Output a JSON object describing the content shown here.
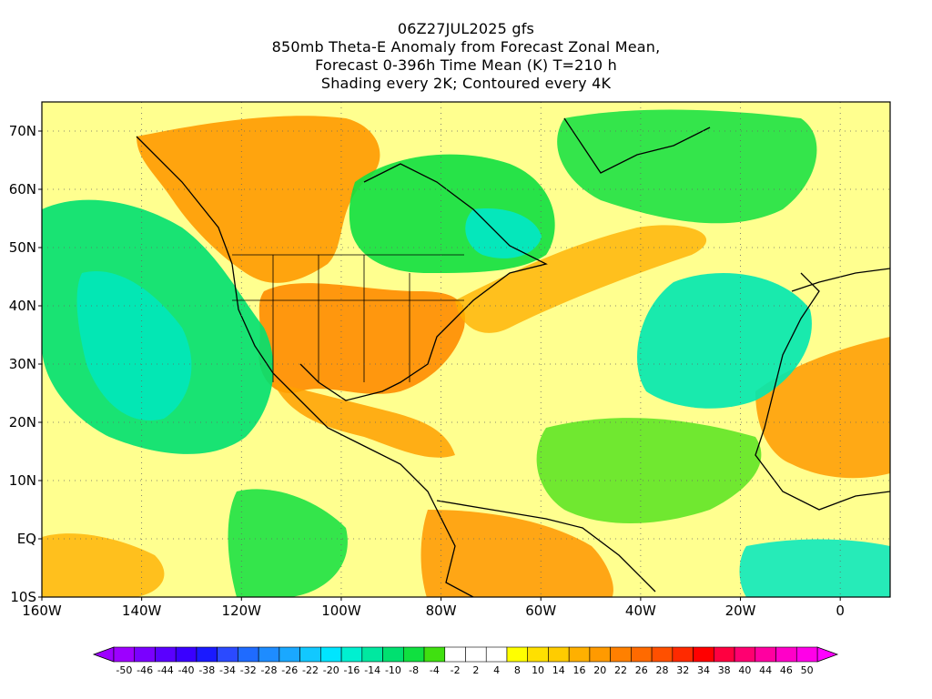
{
  "title": {
    "line1": "06Z27JUL2025 gfs",
    "line2": "850mb Theta-E Anomaly from Forecast Zonal Mean,",
    "line3": "Forecast 0-396h Time Mean (K) T=210 h",
    "line4": "Shading every 2K; Contoured every 4K"
  },
  "map": {
    "lon_range": [
      -160,
      10
    ],
    "lat_range": [
      -10,
      75
    ],
    "lon_ticks": [
      {
        "value": -160,
        "label": "160W"
      },
      {
        "value": -140,
        "label": "140W"
      },
      {
        "value": -120,
        "label": "120W"
      },
      {
        "value": -100,
        "label": "100W"
      },
      {
        "value": -80,
        "label": "80W"
      },
      {
        "value": -60,
        "label": "60W"
      },
      {
        "value": -40,
        "label": "40W"
      },
      {
        "value": -20,
        "label": "20W"
      },
      {
        "value": 0,
        "label": "0"
      }
    ],
    "lat_ticks": [
      {
        "value": 70,
        "label": "70N"
      },
      {
        "value": 60,
        "label": "60N"
      },
      {
        "value": 50,
        "label": "50N"
      },
      {
        "value": 40,
        "label": "40N"
      },
      {
        "value": 30,
        "label": "30N"
      },
      {
        "value": 20,
        "label": "20N"
      },
      {
        "value": 10,
        "label": "10N"
      },
      {
        "value": 0,
        "label": "EQ"
      },
      {
        "value": -10,
        "label": "10S"
      }
    ]
  },
  "colorbar": {
    "labels": [
      "-50",
      "-46",
      "-44",
      "-40",
      "-38",
      "-34",
      "-32",
      "-28",
      "-26",
      "-22",
      "-20",
      "-16",
      "-14",
      "-10",
      "-8",
      "-4",
      "-2",
      "2",
      "4",
      "8",
      "10",
      "14",
      "16",
      "20",
      "22",
      "26",
      "28",
      "32",
      "34",
      "38",
      "40",
      "44",
      "46",
      "50"
    ],
    "colors": [
      "#9d00ff",
      "#7a00ff",
      "#5a00ff",
      "#3a00ff",
      "#1a1aff",
      "#2b4aff",
      "#1f6bff",
      "#1e8cff",
      "#1aa8ff",
      "#12c8ff",
      "#00e5ff",
      "#00f0d0",
      "#00e8a0",
      "#00e070",
      "#10e040",
      "#40e010",
      "#ffffff",
      "#ffffff",
      "#ffffff",
      "#ffff00",
      "#ffe000",
      "#ffcc00",
      "#ffb000",
      "#ff9a00",
      "#ff8000",
      "#ff6a00",
      "#ff5000",
      "#ff2a00",
      "#ff0000",
      "#ff0040",
      "#ff0070",
      "#ff00a0",
      "#ff00c8",
      "#ff00e8"
    ],
    "start_arrow_color": "#9d00ff",
    "end_arrow_color": "#ff00ff"
  },
  "colors": {
    "warm_orange": "#ff9a00",
    "yellow": "#ffff00",
    "green": "#00e070",
    "cyan": "#00e8c0",
    "light_green": "#40e010"
  }
}
